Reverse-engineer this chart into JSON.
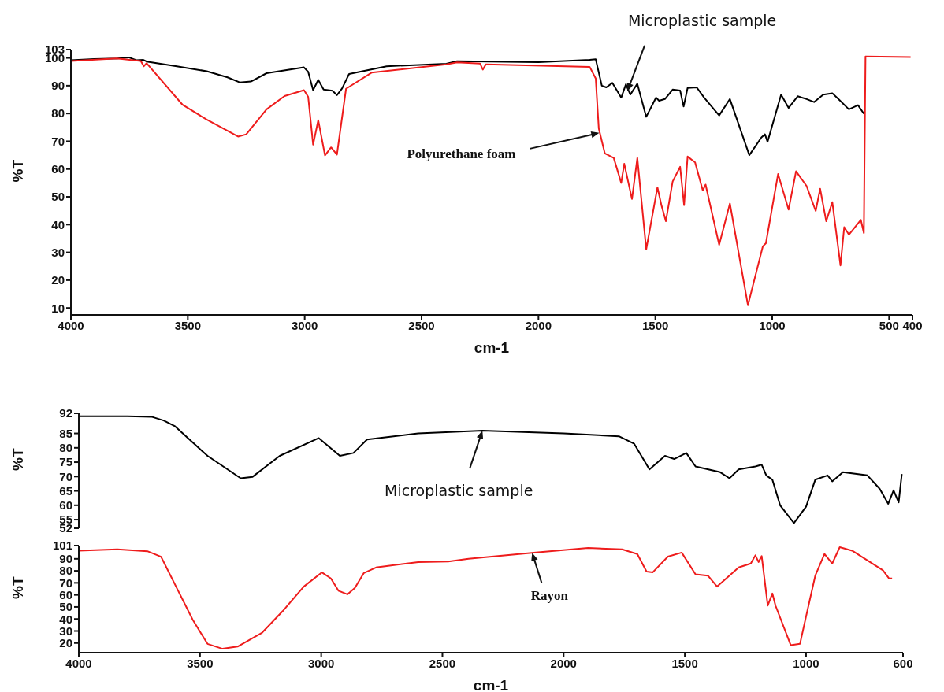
{
  "chart_data": [
    {
      "type": "line",
      "xlabel": "cm-1",
      "ylabel": "%T",
      "xlim": [
        4000,
        400
      ],
      "xticks": [
        4000,
        3500,
        3000,
        2500,
        2000,
        1500,
        1000,
        500,
        400
      ],
      "ylim": [
        7.5,
        103
      ],
      "yticks": [
        10,
        20,
        30,
        40,
        50,
        60,
        70,
        80,
        90,
        100,
        103
      ],
      "line_style": "solid",
      "annotations": [
        {
          "text": "Microplastic sample",
          "x": 1620,
          "y": 88
        },
        {
          "text": "Polyurethane foam",
          "x": 1740,
          "y": 73
        }
      ],
      "series": [
        {
          "color": "#000000",
          "x": [
            4000,
            3900,
            3800,
            3753,
            3720,
            3690,
            3676,
            3547,
            3419,
            3330,
            3278,
            3230,
            3163,
            3003,
            2985,
            2964,
            2942,
            2919,
            2881,
            2862,
            2840,
            2810,
            2650,
            2394,
            2348,
            2000,
            1781,
            1755,
            1729,
            1710,
            1684,
            1646,
            1626,
            1607,
            1577,
            1539,
            1497,
            1484,
            1459,
            1426,
            1394,
            1379,
            1362,
            1323,
            1291,
            1227,
            1181,
            1098,
            1046,
            1031,
            1020,
            962,
            930,
            891,
            853,
            821,
            782,
            743,
            717,
            672,
            633,
            608
          ],
          "values": [
            99.2,
            99.6,
            99.8,
            100.2,
            99.2,
            99.3,
            98.7,
            97,
            95.2,
            93,
            91.2,
            91.5,
            94.5,
            96.6,
            95,
            88.4,
            92.1,
            88.6,
            88.2,
            86.6,
            89,
            94.2,
            97,
            97.9,
            98.8,
            98.5,
            99.3,
            99.5,
            90,
            89.4,
            91,
            85.7,
            90.5,
            86.8,
            90.7,
            78.8,
            85.7,
            84.6,
            85.2,
            88.6,
            88.3,
            82.5,
            89.2,
            89.4,
            85.7,
            79.3,
            85.2,
            65,
            71.4,
            72.5,
            69.8,
            86.8,
            82,
            86.2,
            85.2,
            84.1,
            86.8,
            87.3,
            85.2,
            81.5,
            83,
            79.9
          ]
        },
        {
          "color": "#ee1c1c",
          "x": [
            4000,
            3804,
            3701,
            3688,
            3676,
            3522,
            3419,
            3285,
            3250,
            3163,
            3086,
            3003,
            2985,
            2964,
            2942,
            2913,
            2887,
            2862,
            2823,
            2714,
            2394,
            2348,
            2250,
            2238,
            2225,
            1781,
            1755,
            1742,
            1716,
            1678,
            1646,
            1633,
            1600,
            1577,
            1539,
            1491,
            1474,
            1455,
            1426,
            1394,
            1377,
            1362,
            1330,
            1297,
            1285,
            1227,
            1181,
            1104,
            1040,
            1027,
            975,
            930,
            898,
            853,
            814,
            795,
            769,
            743,
            708,
            692,
            672,
            621,
            608,
            601,
            408
          ],
          "values": [
            98.9,
            99.8,
            98.9,
            97,
            98.1,
            83.1,
            77.8,
            71.7,
            72.5,
            81.5,
            86.3,
            88.4,
            86,
            68.8,
            77.6,
            64.9,
            67.8,
            65.2,
            88.9,
            94.7,
            97.7,
            98.4,
            98,
            95.8,
            97.7,
            96.8,
            92.6,
            74.6,
            65.6,
            64,
            55,
            61.9,
            49.2,
            64,
            31.1,
            53.4,
            47,
            41.2,
            55.5,
            60.8,
            47,
            64.5,
            62.4,
            52.3,
            54.4,
            32.7,
            47.6,
            11,
            32.2,
            33.3,
            58.2,
            45.4,
            59.2,
            53.9,
            44.9,
            52.9,
            41.2,
            48.1,
            25.3,
            39.1,
            36.4,
            41.7,
            37,
            100.5,
            100.3
          ]
        }
      ]
    },
    {
      "type": "line",
      "ylabel": "%T",
      "xlim": [
        4000,
        600
      ],
      "ylim": [
        52,
        92
      ],
      "yticks": [
        52,
        55,
        60,
        65,
        70,
        75,
        80,
        85,
        92
      ],
      "tick_labels": "y",
      "line_style": "solid",
      "annotations": [
        {
          "text": "Microplastic sample",
          "x": 2335,
          "y": 86
        }
      ],
      "series": [
        {
          "color": "#000000",
          "x": [
            4000,
            3800,
            3700,
            3650,
            3605,
            3469,
            3332,
            3283,
            3171,
            3010,
            2923,
            2867,
            2811,
            2600,
            2335,
            2000,
            1772,
            1709,
            1646,
            1582,
            1544,
            1494,
            1456,
            1354,
            1316,
            1278,
            1209,
            1183,
            1164,
            1139,
            1107,
            1050,
            1000,
            962,
            911,
            892,
            848,
            747,
            696,
            661,
            639,
            618,
            605
          ],
          "values": [
            91,
            91,
            90.8,
            89.5,
            87.6,
            77.2,
            69.4,
            69.9,
            77.2,
            83.4,
            77.2,
            78.2,
            82.9,
            85,
            86,
            85,
            84,
            81.4,
            72.5,
            77.2,
            76.1,
            78.2,
            73.5,
            71.5,
            69.4,
            72.5,
            73.5,
            74.1,
            70.4,
            68.9,
            60,
            53.8,
            59.5,
            68.9,
            70.4,
            68.3,
            71.5,
            70.4,
            65.7,
            60.5,
            65.2,
            61,
            70.9
          ]
        }
      ]
    },
    {
      "type": "line",
      "xlabel": "cm-1",
      "ylabel": "%T",
      "xlim": [
        4000,
        600
      ],
      "xticks": [
        4000,
        3500,
        3000,
        2500,
        2000,
        1500,
        1000,
        600
      ],
      "ylim": [
        12,
        101
      ],
      "yticks": [
        20,
        30,
        40,
        50,
        60,
        70,
        80,
        90,
        101
      ],
      "line_style": "solid",
      "annotations": [
        {
          "text": "Rayon",
          "x": 2130,
          "y": 95
        }
      ],
      "series": [
        {
          "color": "#ee1c1c",
          "x": [
            4000,
            3841,
            3717,
            3661,
            3593,
            3531,
            3469,
            3407,
            3345,
            3245,
            3159,
            3072,
            2997,
            2960,
            2929,
            2892,
            2861,
            2824,
            2774,
            2600,
            2476,
            2392,
            2114,
            1899,
            1759,
            1696,
            1658,
            1633,
            1570,
            1513,
            1456,
            1405,
            1367,
            1342,
            1278,
            1228,
            1209,
            1196,
            1183,
            1158,
            1139,
            1126,
            1063,
            1025,
            1000,
            962,
            924,
            892,
            861,
            810,
            683,
            658,
            645
          ],
          "values": [
            96.8,
            97.9,
            96.3,
            91.8,
            64.6,
            39.7,
            19.3,
            15.2,
            17,
            28.4,
            46.5,
            66.9,
            78.7,
            73.7,
            63.5,
            60.5,
            65.8,
            78.2,
            82.8,
            87.3,
            87.7,
            90,
            95.2,
            99,
            97.9,
            94,
            79.4,
            78.7,
            91.8,
            95.2,
            77.1,
            76,
            66.9,
            71.4,
            82.8,
            86.1,
            92.9,
            87.3,
            92.3,
            51.1,
            61.2,
            51.1,
            18.2,
            19.3,
            42,
            76,
            94,
            86.1,
            99.7,
            96.8,
            80.5,
            73.7,
            73.7
          ]
        }
      ]
    }
  ]
}
